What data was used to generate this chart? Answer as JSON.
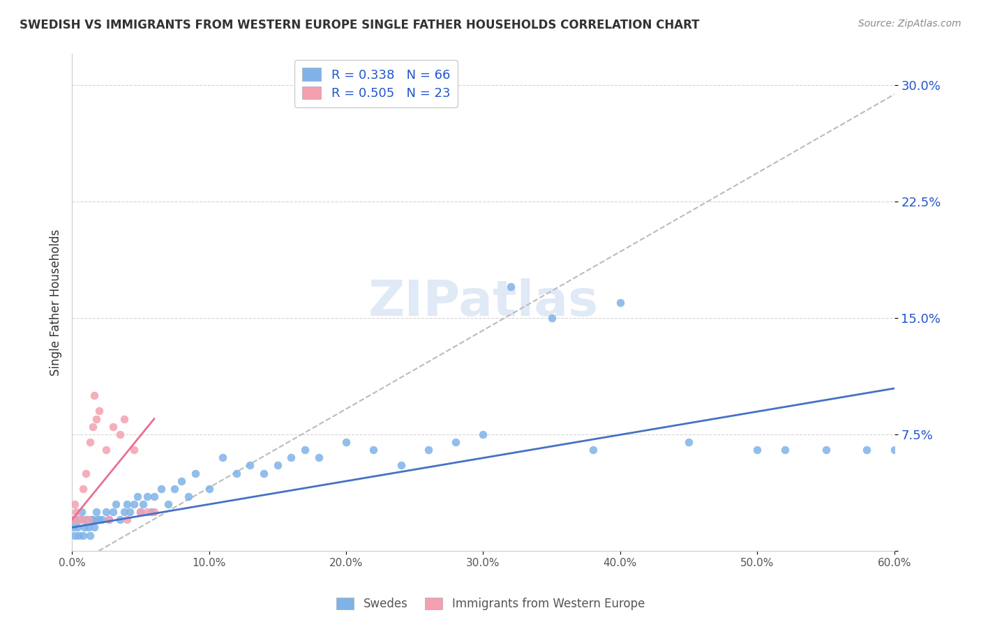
{
  "title": "SWEDISH VS IMMIGRANTS FROM WESTERN EUROPE SINGLE FATHER HOUSEHOLDS CORRELATION CHART",
  "source": "Source: ZipAtlas.com",
  "ylabel": "Single Father Households",
  "xlabel": "",
  "xlim": [
    0,
    0.6
  ],
  "ylim": [
    0,
    0.32
  ],
  "yticks": [
    0.0,
    0.075,
    0.15,
    0.225,
    0.3
  ],
  "ytick_labels": [
    "",
    "7.5%",
    "15.0%",
    "22.5%",
    "30.0%"
  ],
  "xticks": [
    0.0,
    0.1,
    0.2,
    0.3,
    0.4,
    0.5,
    0.6
  ],
  "xtick_labels": [
    "0.0%",
    "10.0%",
    "20.0%",
    "30.0%",
    "40.0%",
    "50.0%",
    "60.0%"
  ],
  "swedes_color": "#7FB3E8",
  "immigrants_color": "#F4A0B0",
  "trend_blue_color": "#4472C4",
  "trend_pink_color": "#E87090",
  "trend_dashed_color": "#BBBBBB",
  "legend_R_blue": "0.338",
  "legend_N_blue": "66",
  "legend_R_pink": "0.505",
  "legend_N_pink": "23",
  "legend_color": "#2255CC",
  "watermark": "ZIPatlas",
  "swedes_x": [
    0.0,
    0.001,
    0.002,
    0.003,
    0.004,
    0.005,
    0.006,
    0.007,
    0.008,
    0.009,
    0.01,
    0.012,
    0.013,
    0.014,
    0.015,
    0.016,
    0.018,
    0.019,
    0.02,
    0.022,
    0.025,
    0.027,
    0.03,
    0.032,
    0.035,
    0.038,
    0.04,
    0.042,
    0.045,
    0.048,
    0.05,
    0.052,
    0.055,
    0.058,
    0.06,
    0.065,
    0.07,
    0.075,
    0.08,
    0.085,
    0.09,
    0.1,
    0.11,
    0.12,
    0.13,
    0.14,
    0.15,
    0.16,
    0.17,
    0.18,
    0.2,
    0.22,
    0.24,
    0.26,
    0.28,
    0.3,
    0.32,
    0.35,
    0.38,
    0.4,
    0.45,
    0.5,
    0.52,
    0.55,
    0.58,
    0.6
  ],
  "swedes_y": [
    0.02,
    0.015,
    0.01,
    0.02,
    0.015,
    0.01,
    0.02,
    0.025,
    0.01,
    0.015,
    0.02,
    0.015,
    0.01,
    0.02,
    0.02,
    0.015,
    0.025,
    0.02,
    0.02,
    0.02,
    0.025,
    0.02,
    0.025,
    0.03,
    0.02,
    0.025,
    0.03,
    0.025,
    0.03,
    0.035,
    0.025,
    0.03,
    0.035,
    0.025,
    0.035,
    0.04,
    0.03,
    0.04,
    0.045,
    0.035,
    0.05,
    0.04,
    0.06,
    0.05,
    0.055,
    0.05,
    0.055,
    0.06,
    0.065,
    0.06,
    0.07,
    0.065,
    0.055,
    0.065,
    0.07,
    0.075,
    0.17,
    0.15,
    0.065,
    0.16,
    0.07,
    0.065,
    0.065,
    0.065,
    0.065,
    0.065
  ],
  "immigrants_x": [
    0.0,
    0.002,
    0.003,
    0.005,
    0.007,
    0.008,
    0.01,
    0.012,
    0.013,
    0.015,
    0.016,
    0.018,
    0.02,
    0.025,
    0.027,
    0.03,
    0.035,
    0.038,
    0.04,
    0.045,
    0.05,
    0.055,
    0.06
  ],
  "immigrants_y": [
    0.02,
    0.03,
    0.025,
    0.02,
    0.02,
    0.04,
    0.05,
    0.02,
    0.07,
    0.08,
    0.1,
    0.085,
    0.09,
    0.065,
    0.02,
    0.08,
    0.075,
    0.085,
    0.02,
    0.065,
    0.025,
    0.025,
    0.025
  ]
}
